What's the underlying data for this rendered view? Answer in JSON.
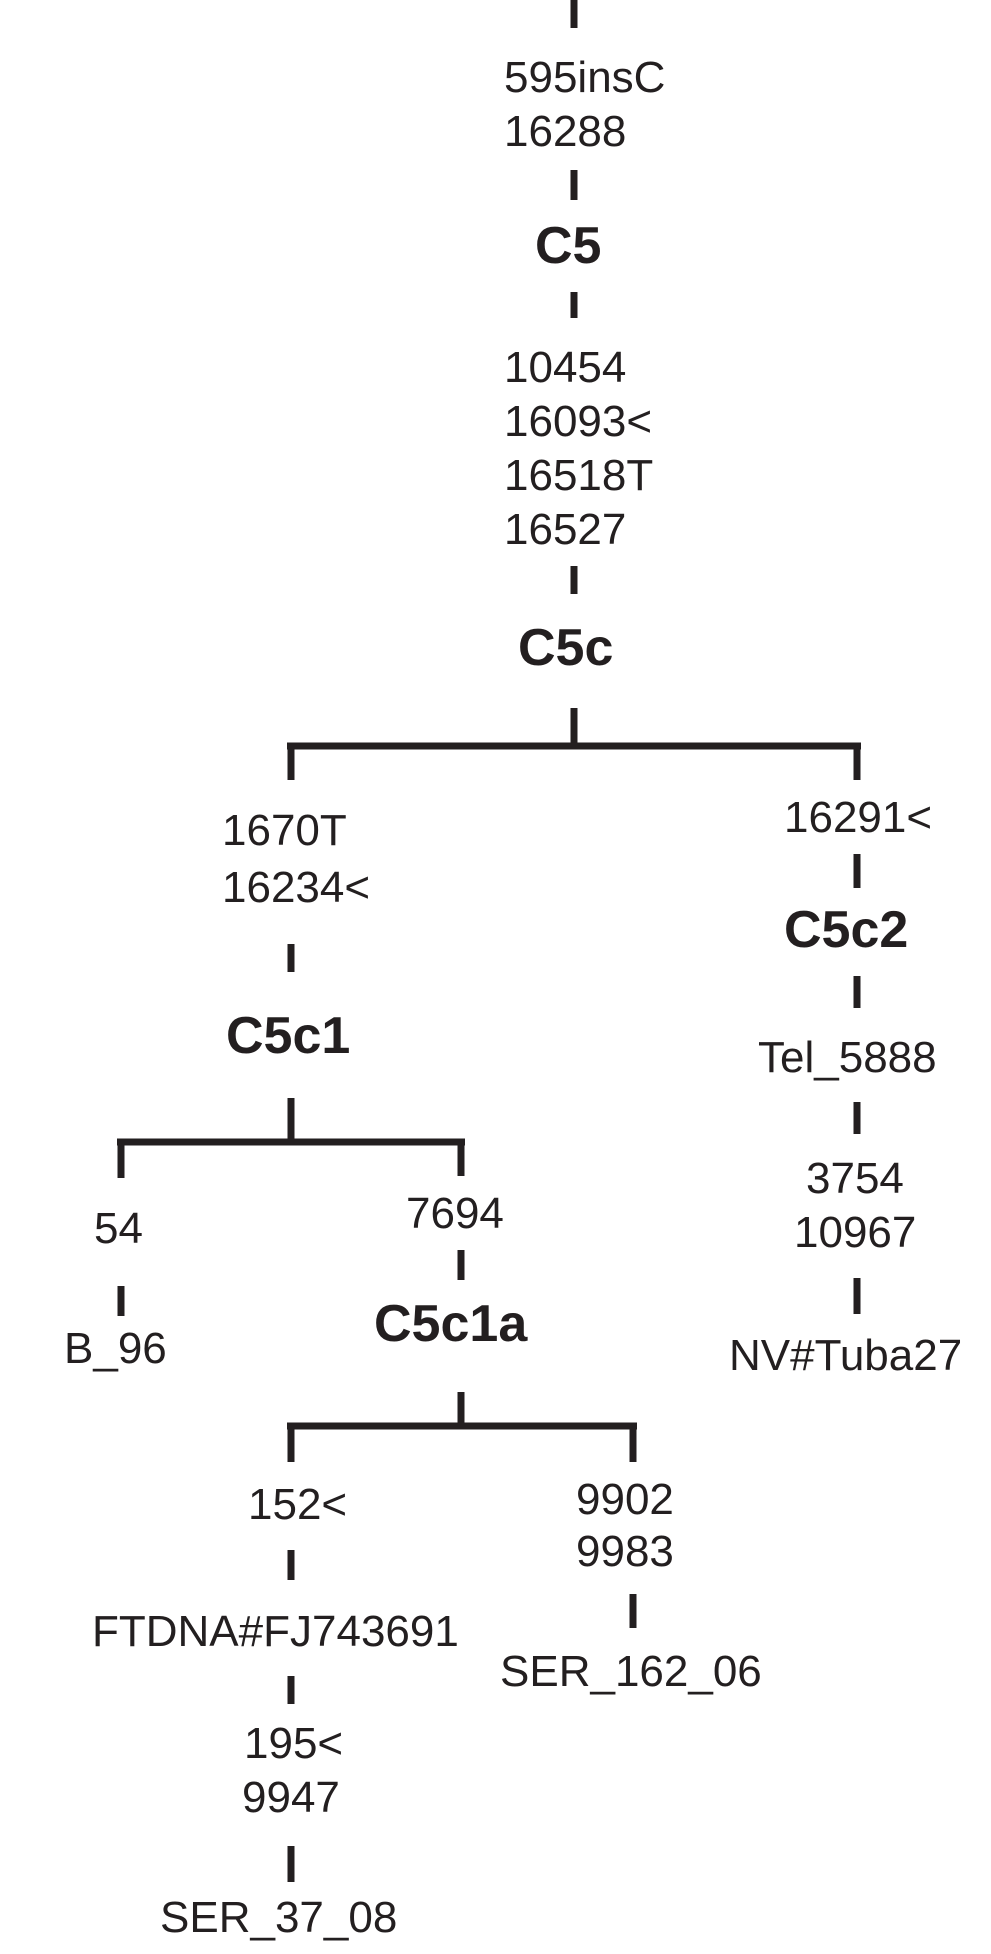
{
  "colors": {
    "ink": "#231f20",
    "background": "#ffffff"
  },
  "tree": {
    "haplogroups": {
      "c5": "C5",
      "c5c": "C5c",
      "c5c1": "C5c1",
      "c5c2": "C5c2",
      "c5c1a": "C5c1a"
    },
    "mutations": {
      "root": [
        "595insC",
        "16288"
      ],
      "c5_to_c5c": [
        "10454",
        "16093<",
        "16518T",
        "16527"
      ],
      "c5c_to_c5c1": [
        "1670T",
        "16234<"
      ],
      "c5c_to_c5c2": [
        "16291<"
      ],
      "c5c2_to_tuba": [
        "3754",
        "10967"
      ],
      "c5c1_to_b96": [
        "54"
      ],
      "c5c1_to_c5c1a": [
        "7694"
      ],
      "c5c1a_to_ftdna": [
        "152<"
      ],
      "ftdna_to_ser37": [
        "195<",
        "9947"
      ],
      "c5c1a_to_ser162": [
        "9902",
        "9983"
      ]
    },
    "samples": {
      "tel": "Tel_5888",
      "tuba": "NV#Tuba27",
      "b96": "B_96",
      "ftdna": "FTDNA#FJ743691",
      "ser162": "SER_162_06",
      "ser37": "SER_37_08"
    }
  }
}
